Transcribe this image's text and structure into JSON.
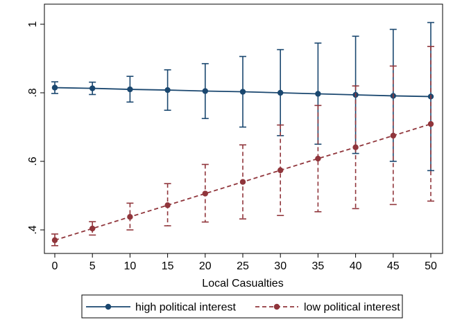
{
  "chart_data": {
    "type": "line",
    "title": "",
    "xlabel": "Local Casualties",
    "ylabel": "",
    "x": [
      0,
      5,
      10,
      15,
      20,
      25,
      30,
      35,
      40,
      45,
      50
    ],
    "x_ticks": [
      "0",
      "5",
      "10",
      "15",
      "20",
      "25",
      "30",
      "35",
      "40",
      "45",
      "50"
    ],
    "y_ticks": [
      ".4",
      ".6",
      ".8",
      "1"
    ],
    "y_tick_values": [
      0.4,
      0.6,
      0.8,
      1.0
    ],
    "xlim": [
      -1,
      51
    ],
    "ylim": [
      0.35,
      1.0
    ],
    "grid": false,
    "legend_position": "bottom",
    "series": [
      {
        "name": "high political interest",
        "color": "#1a476f",
        "line_style": "solid",
        "marker": "circle",
        "values": [
          0.815,
          0.813,
          0.81,
          0.808,
          0.805,
          0.803,
          0.8,
          0.797,
          0.794,
          0.791,
          0.789
        ],
        "lower": [
          0.798,
          0.795,
          0.773,
          0.749,
          0.725,
          0.7,
          0.675,
          0.65,
          0.623,
          0.6,
          0.573
        ],
        "upper": [
          0.832,
          0.831,
          0.848,
          0.867,
          0.885,
          0.906,
          0.926,
          0.945,
          0.965,
          0.985,
          1.005
        ]
      },
      {
        "name": "low political interest",
        "color": "#90353b",
        "line_style": "dashed",
        "marker": "circle",
        "values": [
          0.37,
          0.404,
          0.438,
          0.472,
          0.506,
          0.54,
          0.574,
          0.608,
          0.641,
          0.675,
          0.709
        ],
        "lower": [
          0.354,
          0.385,
          0.4,
          0.412,
          0.423,
          0.432,
          0.442,
          0.453,
          0.462,
          0.474,
          0.484
        ],
        "upper": [
          0.388,
          0.424,
          0.478,
          0.535,
          0.591,
          0.648,
          0.706,
          0.763,
          0.82,
          0.878,
          0.935
        ]
      }
    ]
  }
}
